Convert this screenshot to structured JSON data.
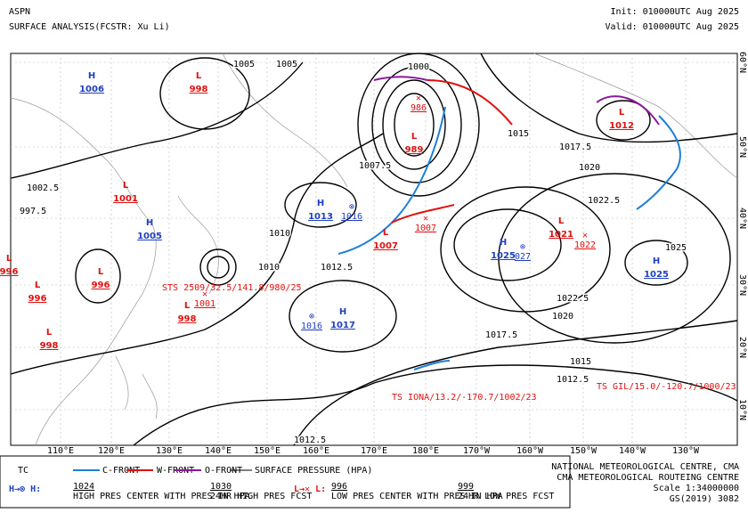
{
  "header": {
    "title": "ASPN",
    "subtitle": "SURFACE ANALYSIS(FCSTR: Xu Li)",
    "init": "Init: 010000UTC Aug 2025",
    "valid": "Valid: 010000UTC Aug 2025"
  },
  "centers": [
    {
      "type": "H",
      "pressure": "1006"
    },
    {
      "type": "L",
      "pressure": "998"
    },
    {
      "type": "L",
      "pressure": "1001"
    },
    {
      "type": "H",
      "pressure": "1005"
    },
    {
      "type": "L",
      "pressure": "996"
    },
    {
      "type": "L",
      "pressure": "996"
    },
    {
      "type": "L",
      "pressure": "996"
    },
    {
      "type": "L",
      "pressure": "998"
    },
    {
      "type": "L",
      "pressure": "998"
    },
    {
      "type": "H",
      "pressure": "1013"
    },
    {
      "type": "H",
      "pressure": "1017"
    },
    {
      "type": "L",
      "pressure": "989"
    },
    {
      "type": "L",
      "pressure": "1007"
    },
    {
      "type": "H",
      "pressure": "1025"
    },
    {
      "type": "L",
      "pressure": "1021"
    },
    {
      "type": "L",
      "pressure": "1012"
    },
    {
      "type": "H",
      "pressure": "1025"
    }
  ],
  "forecasts": [
    {
      "type": "H",
      "pressure": "1016"
    },
    {
      "type": "H",
      "pressure": "1016"
    },
    {
      "type": "H",
      "pressure": "027"
    },
    {
      "type": "L",
      "pressure": "1022"
    },
    {
      "type": "L",
      "pressure": "1007"
    },
    {
      "type": "L",
      "pressure": "1001"
    },
    {
      "type": "L",
      "pressure": "986"
    }
  ],
  "storms": [
    "STS 2509/32.5/141.8/980/25",
    "TS IONA/13.2/-170.7/1002/23",
    "TS GIL/15.0/-120.7/1000/23"
  ],
  "isobar_labels": [
    "1000",
    "1002.5",
    "1005",
    "1007.5",
    "1010",
    "1012.5",
    "1015",
    "1017.5",
    "1020",
    "1022.5",
    "1025",
    "997.5",
    "1015",
    "1012.5",
    "1017.5",
    "1020",
    "1022.5",
    "1005",
    "1010",
    "1012.5"
  ],
  "longitudes": [
    "110°E",
    "120°E",
    "130°E",
    "140°E",
    "150°E",
    "160°E",
    "170°E",
    "180°E",
    "170°W",
    "160°W",
    "150°W",
    "140°W",
    "130°W"
  ],
  "latitudes": [
    "60°N",
    "50°N",
    "40°N",
    "30°N",
    "20°N",
    "10°N"
  ],
  "legend": {
    "tc": "TC",
    "cold": "C-FRONT",
    "warm": "W-FRONT",
    "occluded": "O-FRONT",
    "isobar": "SURFACE PRESSURE (HPA)",
    "high_value": "1024",
    "high_text": "HIGH PRES CENTER WITH PRES IN HPA",
    "high_fcst_value": "1030",
    "high_fcst_text": "24HR HIGH PRES FCST",
    "low_value": "996",
    "low_text": "LOW PRES CENTER WITH PRES IN HPA",
    "low_fcst_value": "999",
    "low_fcst_text": "24HR LOW PRES FCST"
  },
  "footer": {
    "centre": "NATIONAL METEOROLOGICAL CENTRE, CMA",
    "routeing": "CMA METEOROLOGICAL ROUTEING CENTRE",
    "scale": "Scale 1:34000000",
    "code": "GS(2019) 3082"
  }
}
